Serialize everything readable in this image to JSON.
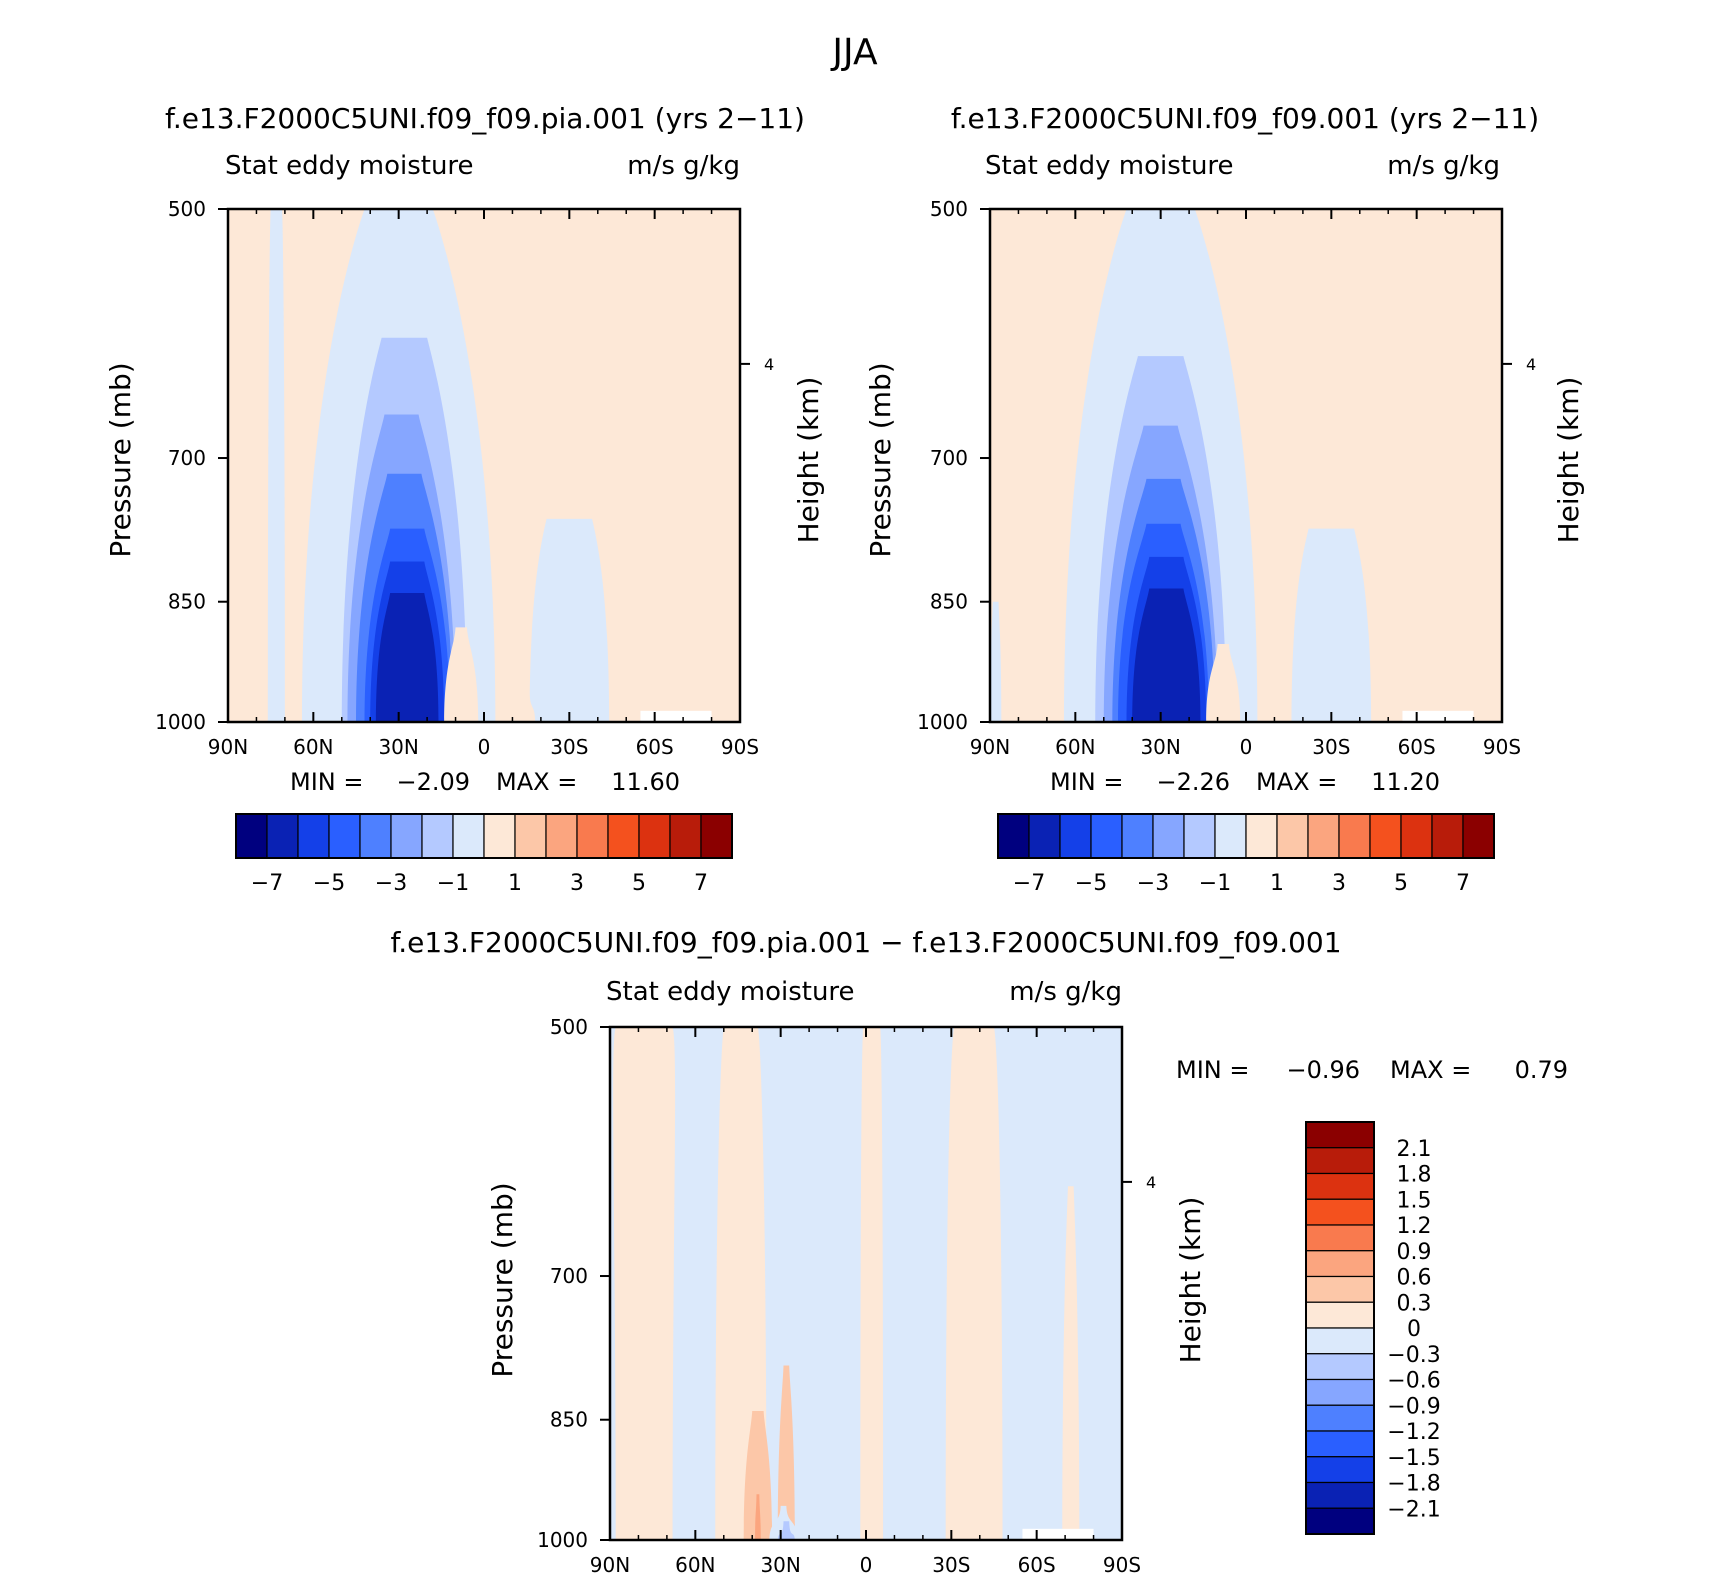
{
  "figure": {
    "title": "JJA"
  },
  "chart_data": [
    {
      "type": "heatmap",
      "title": "f.e13.F2000C5UNI.f09_f09.pia.001 (yrs 2-11)",
      "subtitle_left": "Stat eddy moisture",
      "subtitle_right": "m/s g/kg",
      "ylabel": "Pressure (mb)",
      "ylabel_right": "Height (km)",
      "y_ticks": [
        "500",
        "700",
        "850",
        "1000"
      ],
      "y_tick_values": [
        500,
        700,
        850,
        1000
      ],
      "y_right_ticks": [
        "4"
      ],
      "y_right_tick_values": [
        4
      ],
      "x_ticks": [
        "90N",
        "60N",
        "30N",
        "0",
        "30S",
        "60S",
        "90S"
      ],
      "x_tick_values": [
        90,
        60,
        30,
        0,
        -30,
        -60,
        -90
      ],
      "xlim": [
        90,
        -90
      ],
      "ylim": [
        500,
        1000
      ],
      "min_label": "MIN =",
      "min_value": "-2.09",
      "max_label": "MAX =",
      "max_value": "11.60",
      "colorbar": {
        "orientation": "horizontal",
        "colors": [
          "#00007f",
          "#0a22b4",
          "#1440e8",
          "#2a5fff",
          "#4e80ff",
          "#86a6ff",
          "#b4c9ff",
          "#dbe9fb",
          "#fde8d7",
          "#fcc7a8",
          "#fba57f",
          "#f97a4e",
          "#f4511e",
          "#dc3210",
          "#b81c0a",
          "#8b0000"
        ],
        "labels": [
          "-7",
          "-5",
          "-3",
          "-1",
          "1",
          "3",
          "5",
          "7"
        ]
      },
      "features": [
        {
          "level": 1,
          "lat": 30,
          "hw_bottom": 34,
          "hw_top": 12,
          "top": 500
        },
        {
          "level": 2,
          "lat": 28,
          "hw_bottom": 22,
          "hw_top": 8,
          "top": 595
        },
        {
          "level": 3,
          "lat": 29,
          "hw_bottom": 19,
          "hw_top": 6,
          "top": 660
        },
        {
          "level": 4,
          "lat": 28,
          "hw_bottom": 17,
          "hw_top": 6,
          "top": 715
        },
        {
          "level": 5,
          "lat": 27,
          "hw_bottom": 15,
          "hw_top": 6,
          "top": 770
        },
        {
          "level": 6,
          "lat": 27,
          "hw_bottom": 13,
          "hw_top": 6,
          "top": 805
        },
        {
          "level": 7,
          "lat": 27,
          "hw_bottom": 11,
          "hw_top": 6,
          "top": 840
        },
        {
          "level": 1,
          "lat": -30,
          "hw_bottom": 14,
          "hw_top": 8,
          "top": 760
        },
        {
          "level": 1,
          "lat": 73,
          "hw_bottom": 3,
          "hw_top": 2,
          "top": 500
        },
        {
          "level": -1,
          "lat": 8,
          "hw_bottom": 6,
          "hw_top": 2,
          "top": 880
        },
        {
          "level": -1,
          "lat": -62,
          "hw_bottom": 4,
          "hw_top": 1,
          "top": 905
        },
        {
          "level": -1,
          "lat": -15,
          "hw_bottom": 3,
          "hw_top": 1,
          "top": 960
        }
      ]
    },
    {
      "type": "heatmap",
      "title": "f.e13.F2000C5UNI.f09_f09.001 (yrs 2-11)",
      "subtitle_left": "Stat eddy moisture",
      "subtitle_right": "m/s g/kg",
      "ylabel": "Pressure (mb)",
      "ylabel_right": "Height (km)",
      "y_ticks": [
        "500",
        "700",
        "850",
        "1000"
      ],
      "y_tick_values": [
        500,
        700,
        850,
        1000
      ],
      "y_right_ticks": [
        "4"
      ],
      "y_right_tick_values": [
        4
      ],
      "x_ticks": [
        "90N",
        "60N",
        "30N",
        "0",
        "30S",
        "60S",
        "90S"
      ],
      "x_tick_values": [
        90,
        60,
        30,
        0,
        -30,
        -60,
        -90
      ],
      "xlim": [
        90,
        -90
      ],
      "ylim": [
        500,
        1000
      ],
      "min_label": "MIN =",
      "min_value": "-2.26",
      "max_label": "MAX =",
      "max_value": "11.20",
      "colorbar": {
        "orientation": "horizontal",
        "colors": [
          "#00007f",
          "#0a22b4",
          "#1440e8",
          "#2a5fff",
          "#4e80ff",
          "#86a6ff",
          "#b4c9ff",
          "#dbe9fb",
          "#fde8d7",
          "#fcc7a8",
          "#fba57f",
          "#f97a4e",
          "#f4511e",
          "#dc3210",
          "#b81c0a",
          "#8b0000"
        ],
        "labels": [
          "-7",
          "-5",
          "-3",
          "-1",
          "1",
          "3",
          "5",
          "7"
        ]
      },
      "features": [
        {
          "level": 1,
          "lat": 30,
          "hw_bottom": 34,
          "hw_top": 12,
          "top": 500
        },
        {
          "level": 2,
          "lat": 30,
          "hw_bottom": 23,
          "hw_top": 8,
          "top": 610
        },
        {
          "level": 3,
          "lat": 30,
          "hw_bottom": 20,
          "hw_top": 6,
          "top": 670
        },
        {
          "level": 4,
          "lat": 29,
          "hw_bottom": 18,
          "hw_top": 6,
          "top": 720
        },
        {
          "level": 5,
          "lat": 29,
          "hw_bottom": 16,
          "hw_top": 6,
          "top": 765
        },
        {
          "level": 6,
          "lat": 28,
          "hw_bottom": 14,
          "hw_top": 6,
          "top": 800
        },
        {
          "level": 7,
          "lat": 28,
          "hw_bottom": 12,
          "hw_top": 6,
          "top": 835
        },
        {
          "level": 1,
          "lat": -30,
          "hw_bottom": 14,
          "hw_top": 8,
          "top": 770
        },
        {
          "level": 1,
          "lat": 88,
          "hw_bottom": 2,
          "hw_top": 1,
          "top": 850
        },
        {
          "level": -1,
          "lat": 8,
          "hw_bottom": 6,
          "hw_top": 2,
          "top": 900
        },
        {
          "level": -1,
          "lat": -62,
          "hw_bottom": 4,
          "hw_top": 1,
          "top": 905
        },
        {
          "level": -1,
          "lat": -10,
          "hw_bottom": 3,
          "hw_top": 1,
          "top": 880
        }
      ]
    },
    {
      "type": "heatmap",
      "title": "f.e13.F2000C5UNI.f09_f09.pia.001 - f.e13.F2000C5UNI.f09_f09.001",
      "subtitle_left": "Stat eddy moisture",
      "subtitle_right": "m/s g/kg",
      "ylabel": "Pressure (mb)",
      "ylabel_right": "Height (km)",
      "y_ticks": [
        "500",
        "700",
        "850",
        "1000"
      ],
      "y_tick_values": [
        500,
        700,
        850,
        1000
      ],
      "y_right_ticks": [
        "4"
      ],
      "y_right_tick_values": [
        4
      ],
      "x_ticks": [
        "90N",
        "60N",
        "30N",
        "0",
        "30S",
        "60S",
        "90S"
      ],
      "x_tick_values": [
        90,
        60,
        30,
        0,
        -30,
        -60,
        -90
      ],
      "xlim": [
        90,
        -90
      ],
      "ylim": [
        500,
        1000
      ],
      "min_label": "MIN =",
      "min_value": "-0.96",
      "max_label": "MAX =",
      "max_value": "0.79",
      "colorbar": {
        "orientation": "vertical",
        "colors": [
          "#8b0000",
          "#b81c0a",
          "#dc3210",
          "#f4511e",
          "#f97a4e",
          "#fba57f",
          "#fcc7a8",
          "#fde8d7",
          "#dbe9fb",
          "#b4c9ff",
          "#86a6ff",
          "#4e80ff",
          "#2a5fff",
          "#1440e8",
          "#0a22b4",
          "#00007f"
        ],
        "labels": [
          "2.1",
          "1.8",
          "1.5",
          "1.2",
          "0.9",
          "0.6",
          "0.3",
          "0",
          "-0.3",
          "-0.6",
          "-0.9",
          "-1.2",
          "-1.5",
          "-1.8",
          "-2.1"
        ]
      },
      "features": [
        {
          "level": 1,
          "lat": 78,
          "hw_bottom": 10,
          "hw_top": 10,
          "top": 500
        },
        {
          "level": 1,
          "lat": 44,
          "hw_bottom": 9,
          "hw_top": 6,
          "top": 500
        },
        {
          "level": 1,
          "lat": -38,
          "hw_bottom": 10,
          "hw_top": 7,
          "top": 500
        },
        {
          "level": 1,
          "lat": -2,
          "hw_bottom": 4,
          "hw_top": 3,
          "top": 500
        },
        {
          "level": 1,
          "lat": -72,
          "hw_bottom": 3,
          "hw_top": 1,
          "top": 620
        },
        {
          "level": 2,
          "lat": 38,
          "hw_bottom": 5,
          "hw_top": 2,
          "top": 840
        },
        {
          "level": 2,
          "lat": 28,
          "hw_bottom": 3,
          "hw_top": 1,
          "top": 790
        },
        {
          "level": 3,
          "lat": 38,
          "hw_bottom": 1,
          "hw_top": 0.5,
          "top": 940
        },
        {
          "level": -1,
          "lat": 29,
          "hw_bottom": 5,
          "hw_top": 1,
          "top": 955
        },
        {
          "level": -2,
          "lat": 28,
          "hw_bottom": 3,
          "hw_top": 1,
          "top": 975
        }
      ]
    }
  ]
}
